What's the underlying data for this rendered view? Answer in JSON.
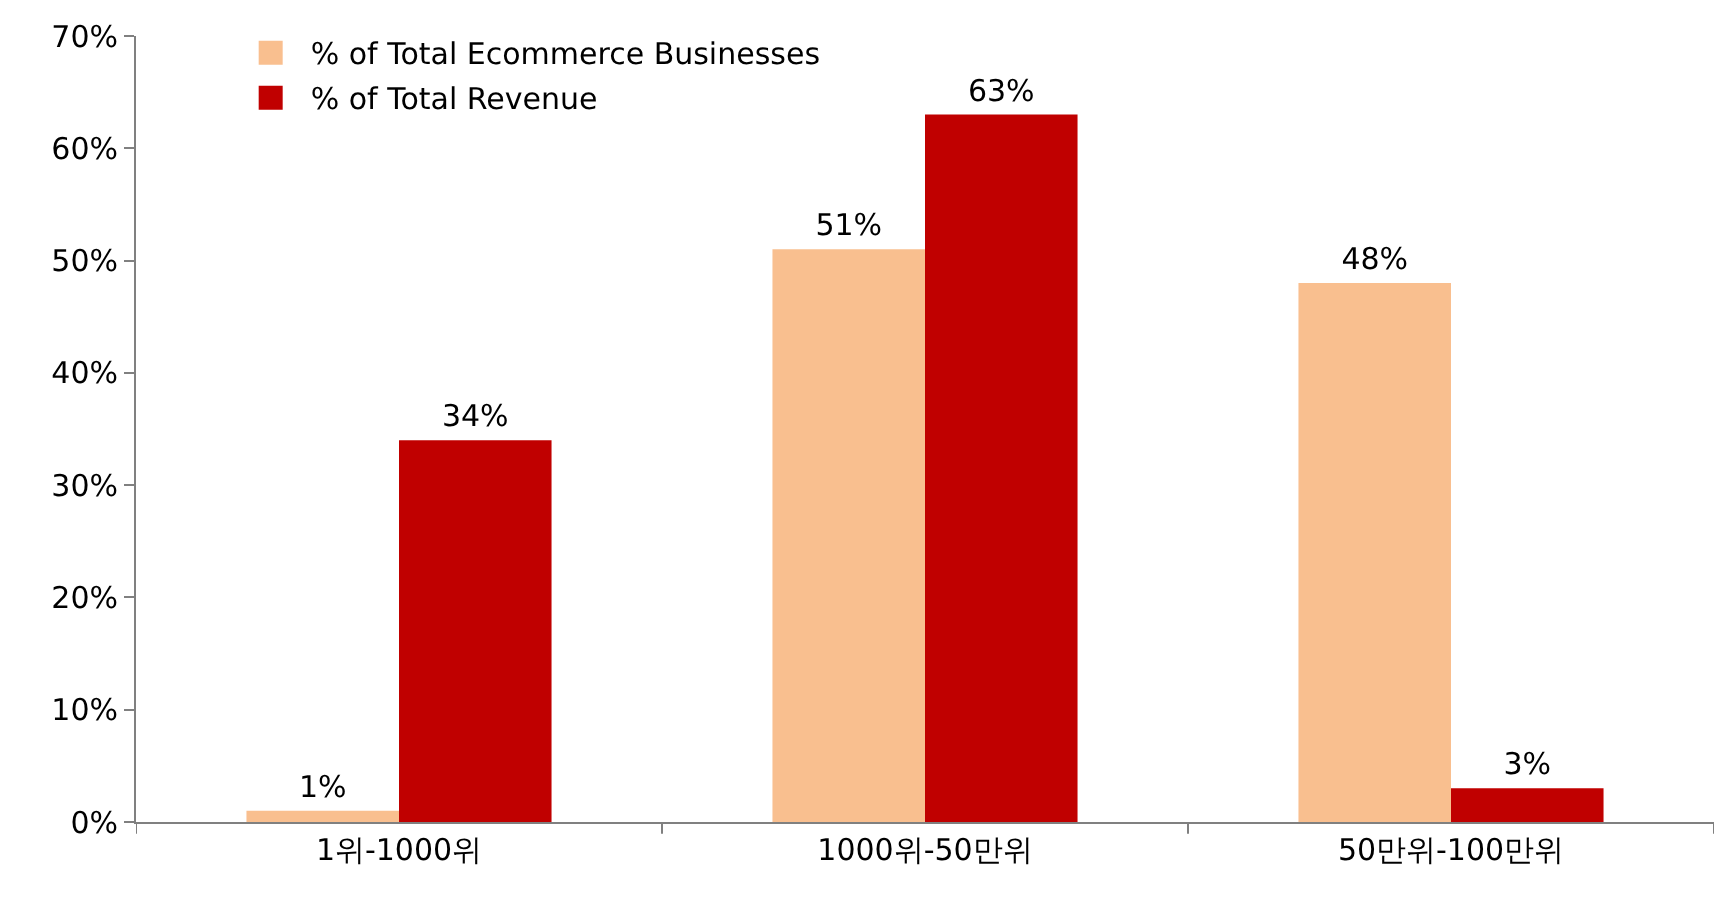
{
  "chart_data": {
    "type": "bar",
    "categories": [
      "1위-1000위",
      "1000위-50만위",
      "50만위-100만위"
    ],
    "series": [
      {
        "name": "% of Total Ecommerce Businesses",
        "color": "#f9bf8f",
        "values": [
          1,
          51,
          48
        ],
        "value_labels": [
          "1%",
          "51%",
          "48%"
        ]
      },
      {
        "name": "% of Total Revenue",
        "color": "#c00000",
        "values": [
          34,
          63,
          3
        ],
        "value_labels": [
          "34%",
          "63%",
          "3%"
        ]
      }
    ],
    "ylim": [
      0,
      70
    ],
    "yticks": [
      {
        "value": 0,
        "label": "0%"
      },
      {
        "value": 10,
        "label": "10%"
      },
      {
        "value": 20,
        "label": "20%"
      },
      {
        "value": 30,
        "label": "30%"
      },
      {
        "value": 40,
        "label": "40%"
      },
      {
        "value": 50,
        "label": "50%"
      },
      {
        "value": 60,
        "label": "60%"
      },
      {
        "value": 70,
        "label": "70%"
      }
    ],
    "legend": "top left"
  }
}
